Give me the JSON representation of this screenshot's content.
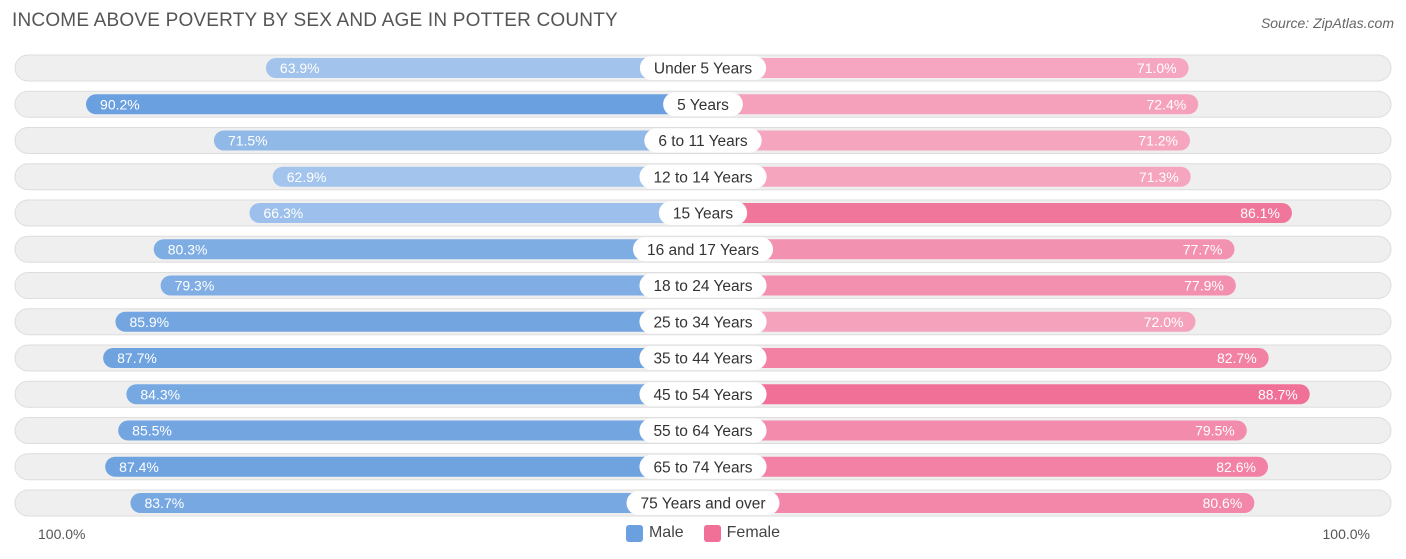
{
  "title": "INCOME ABOVE POVERTY BY SEX AND AGE IN POTTER COUNTY",
  "source": "Source: ZipAtlas.com",
  "axis_left_label": "100.0%",
  "axis_right_label": "100.0%",
  "legend": {
    "male": "Male",
    "female": "Female"
  },
  "colors": {
    "male_light": "#a9c8ee",
    "male_dark": "#6aa0df",
    "female_light": "#f6a9c2",
    "female_dark": "#f07098",
    "track": "#efefef"
  },
  "chart_data": {
    "type": "bar",
    "orientation": "horizontal-diverging",
    "categories": [
      "Under 5 Years",
      "5 Years",
      "6 to 11 Years",
      "12 to 14 Years",
      "15 Years",
      "16 and 17 Years",
      "18 to 24 Years",
      "25 to 34 Years",
      "35 to 44 Years",
      "45 to 54 Years",
      "55 to 64 Years",
      "65 to 74 Years",
      "75 Years and over"
    ],
    "series": [
      {
        "name": "Male",
        "values": [
          63.9,
          90.2,
          71.5,
          62.9,
          66.3,
          80.3,
          79.3,
          85.9,
          87.7,
          84.3,
          85.5,
          87.4,
          83.7
        ],
        "labels": [
          "63.9%",
          "90.2%",
          "71.5%",
          "62.9%",
          "66.3%",
          "80.3%",
          "79.3%",
          "85.9%",
          "87.7%",
          "84.3%",
          "85.5%",
          "87.4%",
          "83.7%"
        ]
      },
      {
        "name": "Female",
        "values": [
          71.0,
          72.4,
          71.2,
          71.3,
          86.1,
          77.7,
          77.9,
          72.0,
          82.7,
          88.7,
          79.5,
          82.6,
          80.6
        ],
        "labels": [
          "71.0%",
          "72.4%",
          "71.2%",
          "71.3%",
          "86.1%",
          "77.7%",
          "77.9%",
          "72.0%",
          "82.7%",
          "88.7%",
          "79.5%",
          "82.6%",
          "80.6%"
        ]
      }
    ],
    "xlim": [
      0,
      100
    ]
  }
}
